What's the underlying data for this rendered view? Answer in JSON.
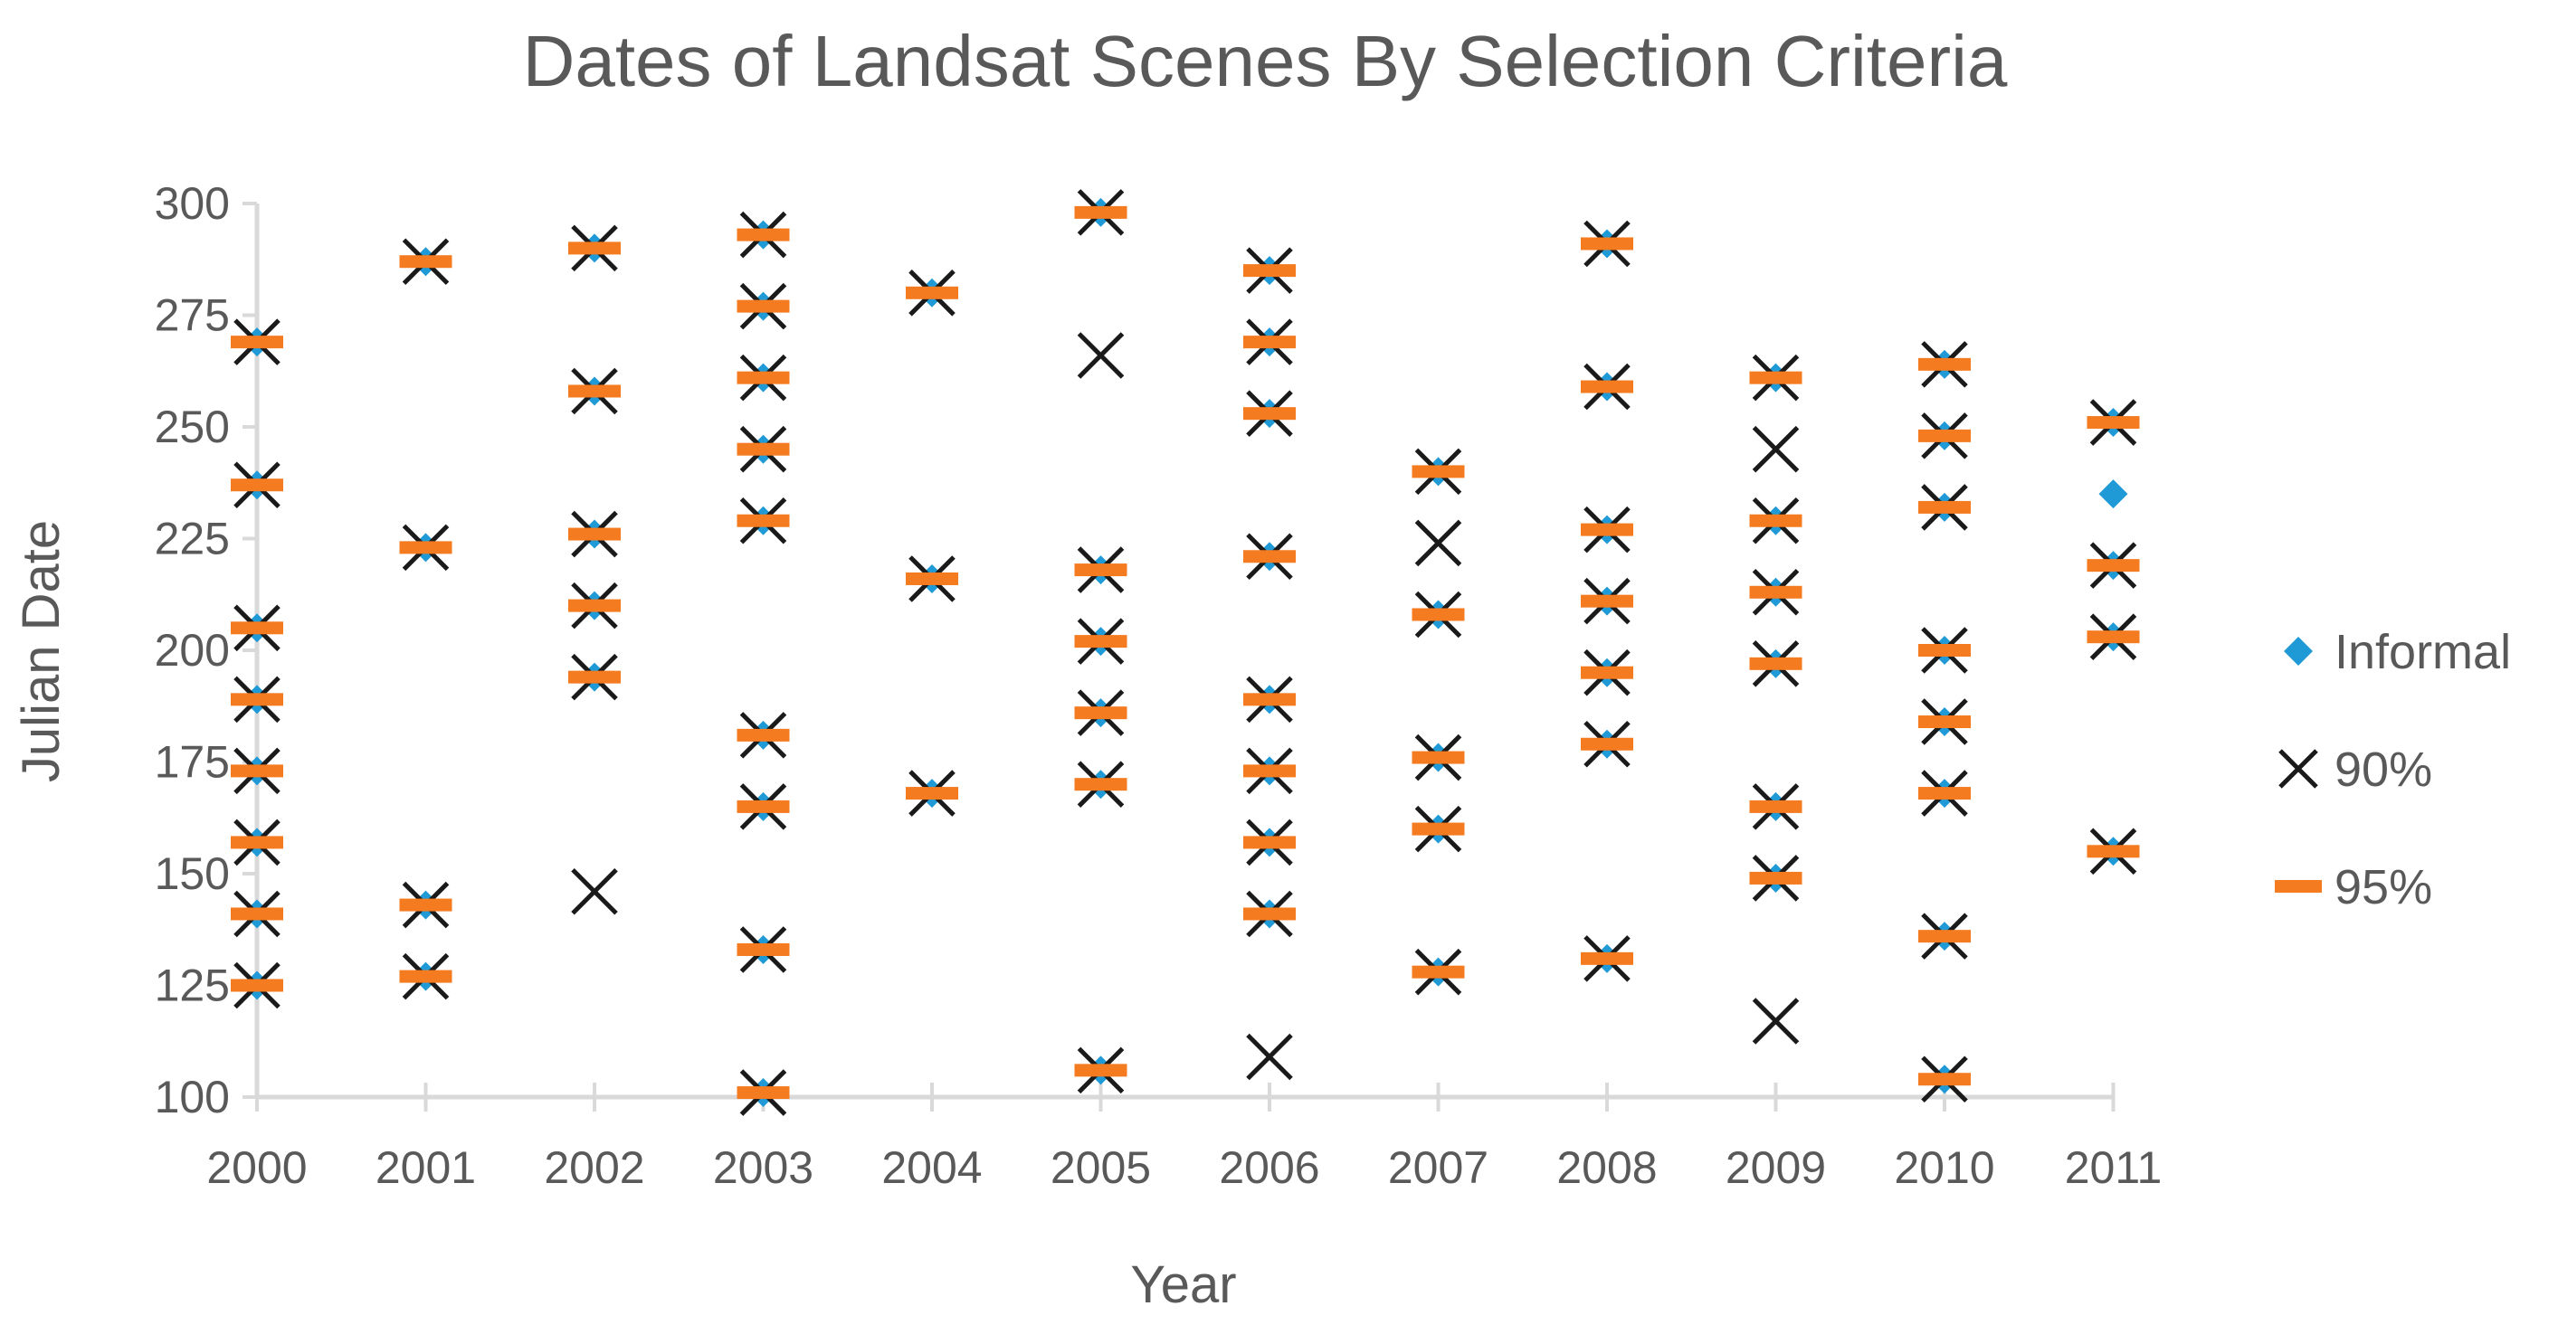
{
  "chart_data": {
    "type": "scatter",
    "title": "Dates of Landsat Scenes By Selection Criteria",
    "xlabel": "Year",
    "ylabel": "Julian Date",
    "x_categories": [
      2000,
      2001,
      2002,
      2003,
      2004,
      2005,
      2006,
      2007,
      2008,
      2009,
      2010,
      2011
    ],
    "yticks": [
      100,
      125,
      150,
      175,
      200,
      225,
      250,
      275,
      300
    ],
    "ylim": [
      100,
      300
    ],
    "grid": false,
    "legend_position": "right",
    "series": [
      {
        "name": "Informal",
        "marker": "diamond",
        "color": "#1f9ad6",
        "points": [
          [
            2000,
            125
          ],
          [
            2000,
            141
          ],
          [
            2000,
            157
          ],
          [
            2000,
            173
          ],
          [
            2000,
            189
          ],
          [
            2000,
            205
          ],
          [
            2000,
            237
          ],
          [
            2000,
            269
          ],
          [
            2001,
            127
          ],
          [
            2001,
            143
          ],
          [
            2001,
            223
          ],
          [
            2001,
            287
          ],
          [
            2002,
            194
          ],
          [
            2002,
            210
          ],
          [
            2002,
            226
          ],
          [
            2002,
            258
          ],
          [
            2002,
            290
          ],
          [
            2003,
            101
          ],
          [
            2003,
            133
          ],
          [
            2003,
            165
          ],
          [
            2003,
            181
          ],
          [
            2003,
            229
          ],
          [
            2003,
            245
          ],
          [
            2003,
            261
          ],
          [
            2003,
            277
          ],
          [
            2003,
            293
          ],
          [
            2004,
            168
          ],
          [
            2004,
            216
          ],
          [
            2004,
            280
          ],
          [
            2005,
            106
          ],
          [
            2005,
            170
          ],
          [
            2005,
            186
          ],
          [
            2005,
            202
          ],
          [
            2005,
            218
          ],
          [
            2005,
            298
          ],
          [
            2006,
            141
          ],
          [
            2006,
            157
          ],
          [
            2006,
            173
          ],
          [
            2006,
            189
          ],
          [
            2006,
            221
          ],
          [
            2006,
            253
          ],
          [
            2006,
            269
          ],
          [
            2006,
            285
          ],
          [
            2007,
            128
          ],
          [
            2007,
            160
          ],
          [
            2007,
            176
          ],
          [
            2007,
            208
          ],
          [
            2007,
            240
          ],
          [
            2008,
            131
          ],
          [
            2008,
            179
          ],
          [
            2008,
            195
          ],
          [
            2008,
            211
          ],
          [
            2008,
            227
          ],
          [
            2008,
            259
          ],
          [
            2008,
            291
          ],
          [
            2009,
            149
          ],
          [
            2009,
            165
          ],
          [
            2009,
            197
          ],
          [
            2009,
            213
          ],
          [
            2009,
            229
          ],
          [
            2009,
            261
          ],
          [
            2010,
            104
          ],
          [
            2010,
            136
          ],
          [
            2010,
            168
          ],
          [
            2010,
            184
          ],
          [
            2010,
            200
          ],
          [
            2010,
            232
          ],
          [
            2010,
            248
          ],
          [
            2010,
            264
          ],
          [
            2011,
            155
          ],
          [
            2011,
            203
          ],
          [
            2011,
            219
          ],
          [
            2011,
            235
          ],
          [
            2011,
            251
          ]
        ]
      },
      {
        "name": "90%",
        "marker": "x",
        "color": "#1a1a1a",
        "points": [
          [
            2000,
            125
          ],
          [
            2000,
            141
          ],
          [
            2000,
            157
          ],
          [
            2000,
            173
          ],
          [
            2000,
            189
          ],
          [
            2000,
            205
          ],
          [
            2000,
            237
          ],
          [
            2000,
            269
          ],
          [
            2001,
            127
          ],
          [
            2001,
            143
          ],
          [
            2001,
            223
          ],
          [
            2001,
            287
          ],
          [
            2002,
            146
          ],
          [
            2002,
            194
          ],
          [
            2002,
            210
          ],
          [
            2002,
            226
          ],
          [
            2002,
            258
          ],
          [
            2002,
            290
          ],
          [
            2003,
            101
          ],
          [
            2003,
            133
          ],
          [
            2003,
            165
          ],
          [
            2003,
            181
          ],
          [
            2003,
            229
          ],
          [
            2003,
            245
          ],
          [
            2003,
            261
          ],
          [
            2003,
            277
          ],
          [
            2003,
            293
          ],
          [
            2004,
            168
          ],
          [
            2004,
            216
          ],
          [
            2004,
            280
          ],
          [
            2005,
            106
          ],
          [
            2005,
            170
          ],
          [
            2005,
            186
          ],
          [
            2005,
            202
          ],
          [
            2005,
            218
          ],
          [
            2005,
            266
          ],
          [
            2005,
            298
          ],
          [
            2006,
            109
          ],
          [
            2006,
            141
          ],
          [
            2006,
            157
          ],
          [
            2006,
            173
          ],
          [
            2006,
            189
          ],
          [
            2006,
            221
          ],
          [
            2006,
            253
          ],
          [
            2006,
            269
          ],
          [
            2006,
            285
          ],
          [
            2007,
            128
          ],
          [
            2007,
            160
          ],
          [
            2007,
            176
          ],
          [
            2007,
            208
          ],
          [
            2007,
            224
          ],
          [
            2007,
            240
          ],
          [
            2008,
            131
          ],
          [
            2008,
            179
          ],
          [
            2008,
            195
          ],
          [
            2008,
            211
          ],
          [
            2008,
            227
          ],
          [
            2008,
            259
          ],
          [
            2008,
            291
          ],
          [
            2009,
            117
          ],
          [
            2009,
            149
          ],
          [
            2009,
            165
          ],
          [
            2009,
            197
          ],
          [
            2009,
            213
          ],
          [
            2009,
            229
          ],
          [
            2009,
            245
          ],
          [
            2009,
            261
          ],
          [
            2010,
            104
          ],
          [
            2010,
            136
          ],
          [
            2010,
            168
          ],
          [
            2010,
            184
          ],
          [
            2010,
            200
          ],
          [
            2010,
            232
          ],
          [
            2010,
            248
          ],
          [
            2010,
            264
          ],
          [
            2011,
            155
          ],
          [
            2011,
            203
          ],
          [
            2011,
            219
          ],
          [
            2011,
            251
          ]
        ]
      },
      {
        "name": "95%",
        "marker": "dash",
        "color": "#f47b20",
        "points": [
          [
            2000,
            125
          ],
          [
            2000,
            141
          ],
          [
            2000,
            157
          ],
          [
            2000,
            173
          ],
          [
            2000,
            189
          ],
          [
            2000,
            205
          ],
          [
            2000,
            237
          ],
          [
            2000,
            269
          ],
          [
            2001,
            127
          ],
          [
            2001,
            143
          ],
          [
            2001,
            223
          ],
          [
            2001,
            287
          ],
          [
            2002,
            194
          ],
          [
            2002,
            210
          ],
          [
            2002,
            226
          ],
          [
            2002,
            258
          ],
          [
            2002,
            290
          ],
          [
            2003,
            101
          ],
          [
            2003,
            133
          ],
          [
            2003,
            165
          ],
          [
            2003,
            181
          ],
          [
            2003,
            229
          ],
          [
            2003,
            245
          ],
          [
            2003,
            261
          ],
          [
            2003,
            277
          ],
          [
            2003,
            293
          ],
          [
            2004,
            168
          ],
          [
            2004,
            216
          ],
          [
            2004,
            280
          ],
          [
            2005,
            106
          ],
          [
            2005,
            170
          ],
          [
            2005,
            186
          ],
          [
            2005,
            202
          ],
          [
            2005,
            218
          ],
          [
            2005,
            298
          ],
          [
            2006,
            141
          ],
          [
            2006,
            157
          ],
          [
            2006,
            173
          ],
          [
            2006,
            189
          ],
          [
            2006,
            221
          ],
          [
            2006,
            253
          ],
          [
            2006,
            269
          ],
          [
            2006,
            285
          ],
          [
            2007,
            128
          ],
          [
            2007,
            160
          ],
          [
            2007,
            176
          ],
          [
            2007,
            208
          ],
          [
            2007,
            240
          ],
          [
            2008,
            131
          ],
          [
            2008,
            179
          ],
          [
            2008,
            195
          ],
          [
            2008,
            211
          ],
          [
            2008,
            227
          ],
          [
            2008,
            259
          ],
          [
            2008,
            291
          ],
          [
            2009,
            149
          ],
          [
            2009,
            165
          ],
          [
            2009,
            197
          ],
          [
            2009,
            213
          ],
          [
            2009,
            229
          ],
          [
            2009,
            261
          ],
          [
            2010,
            104
          ],
          [
            2010,
            136
          ],
          [
            2010,
            168
          ],
          [
            2010,
            184
          ],
          [
            2010,
            200
          ],
          [
            2010,
            232
          ],
          [
            2010,
            248
          ],
          [
            2010,
            264
          ],
          [
            2011,
            155
          ],
          [
            2011,
            203
          ],
          [
            2011,
            219
          ],
          [
            2011,
            251
          ]
        ]
      }
    ]
  }
}
